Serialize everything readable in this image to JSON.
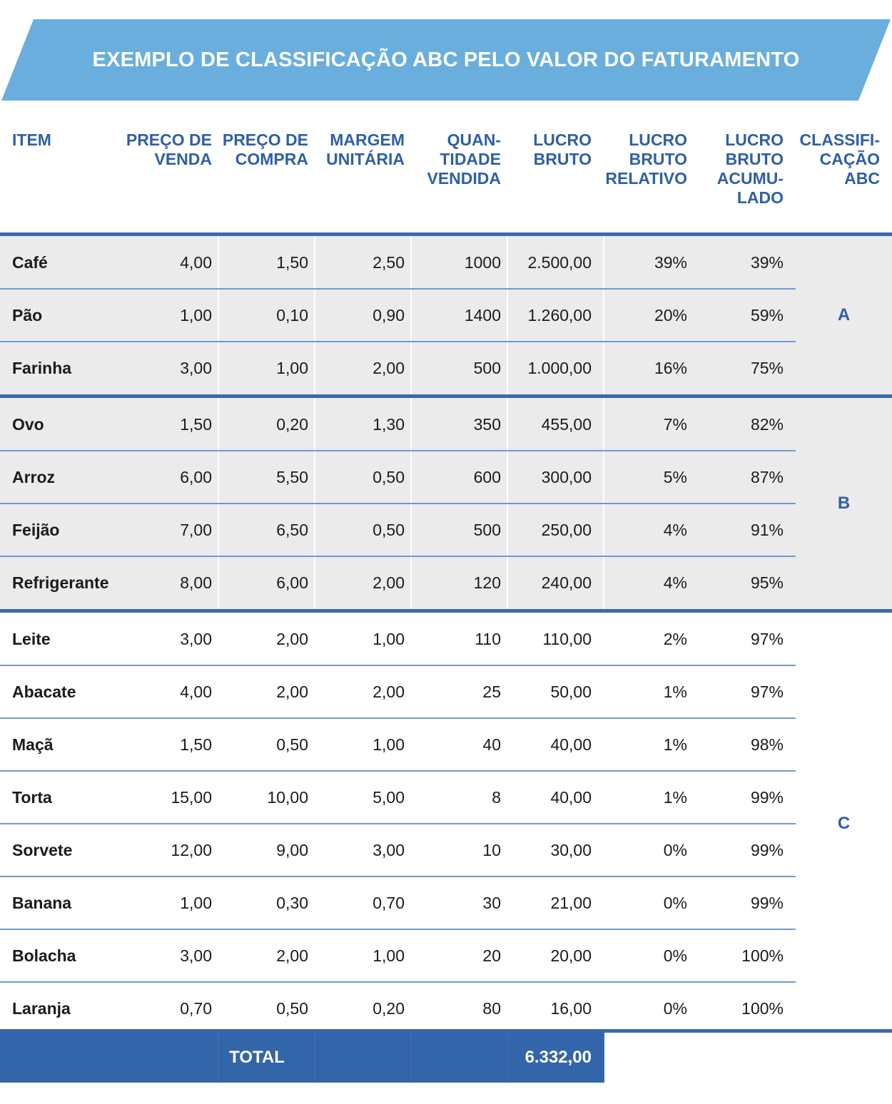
{
  "title": "EXEMPLO DE CLASSIFICAÇÃO ABC PELO VALOR DO FATURAMENTO",
  "colors": {
    "banner": "#6aaedd",
    "header_text": "#2f5fa6",
    "rule": "#3a68ad",
    "band": "#ebebec",
    "footer": "#3265a9"
  },
  "columns": [
    "ITEM",
    "PREÇO DE\nVENDA",
    "PREÇO DE\nCOMPRA",
    "MARGEM\nUNITÁRIA",
    "QUAN-\nTIDADE\nVENDIDA",
    "LUCRO\nBRUTO",
    "LUCRO\nBRUTO\nRELATIVO",
    "LUCRO\nBRUTO\nACUMU-\nLADO",
    "CLASSIFI-\nCAÇÃO\nABC"
  ],
  "groups": [
    {
      "label": "A",
      "shaded": true,
      "rows": [
        [
          "Café",
          "4,00",
          "1,50",
          "2,50",
          "1000",
          "2.500,00",
          "39%",
          "39%"
        ],
        [
          "Pão",
          "1,00",
          "0,10",
          "0,90",
          "1400",
          "1.260,00",
          "20%",
          "59%"
        ],
        [
          "Farinha",
          "3,00",
          "1,00",
          "2,00",
          "500",
          "1.000,00",
          "16%",
          "75%"
        ]
      ]
    },
    {
      "label": "B",
      "shaded": true,
      "rows": [
        [
          "Ovo",
          "1,50",
          "0,20",
          "1,30",
          "350",
          "455,00",
          "7%",
          "82%"
        ],
        [
          "Arroz",
          "6,00",
          "5,50",
          "0,50",
          "600",
          "300,00",
          "5%",
          "87%"
        ],
        [
          "Feijão",
          "7,00",
          "6,50",
          "0,50",
          "500",
          "250,00",
          "4%",
          "91%"
        ],
        [
          "Refrigerante",
          "8,00",
          "6,00",
          "2,00",
          "120",
          "240,00",
          "4%",
          "95%"
        ]
      ]
    },
    {
      "label": "C",
      "shaded": false,
      "rows": [
        [
          "Leite",
          "3,00",
          "2,00",
          "1,00",
          "110",
          "110,00",
          "2%",
          "97%"
        ],
        [
          "Abacate",
          "4,00",
          "2,00",
          "2,00",
          "25",
          "50,00",
          "1%",
          "97%"
        ],
        [
          "Maçã",
          "1,50",
          "0,50",
          "1,00",
          "40",
          "40,00",
          "1%",
          "98%"
        ],
        [
          "Torta",
          "15,00",
          "10,00",
          "5,00",
          "8",
          "40,00",
          "1%",
          "99%"
        ],
        [
          "Sorvete",
          "12,00",
          "9,00",
          "3,00",
          "10",
          "30,00",
          "0%",
          "99%"
        ],
        [
          "Banana",
          "1,00",
          "0,30",
          "0,70",
          "30",
          "21,00",
          "0%",
          "99%"
        ],
        [
          "Bolacha",
          "3,00",
          "2,00",
          "1,00",
          "20",
          "20,00",
          "0%",
          "100%"
        ],
        [
          "Laranja",
          "0,70",
          "0,50",
          "0,20",
          "80",
          "16,00",
          "0%",
          "100%"
        ]
      ]
    }
  ],
  "total": {
    "label": "TOTAL",
    "value": "6.332,00"
  }
}
